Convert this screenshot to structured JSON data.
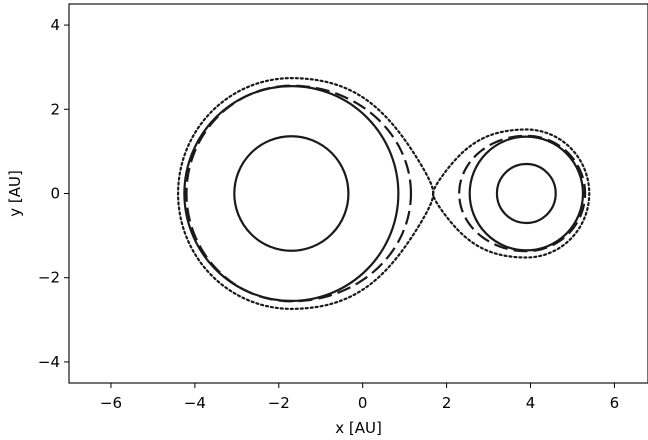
{
  "chart_data": {
    "type": "line",
    "title": "",
    "xlabel": "x [AU]",
    "ylabel": "y [AU]",
    "xlim": [
      -7,
      6.8
    ],
    "ylim": [
      -4.5,
      4.5
    ],
    "xticks": [
      -6,
      -4,
      -2,
      0,
      2,
      4,
      6
    ],
    "yticks": [
      -4,
      -2,
      0,
      2,
      4
    ],
    "xtick_labels": [
      "−6",
      "−4",
      "−2",
      "0",
      "2",
      "4",
      "6"
    ],
    "ytick_labels": [
      "−4",
      "−2",
      "0",
      "2",
      "4"
    ],
    "grid": false,
    "legend": null,
    "color": "#1a1a1a",
    "series": [
      {
        "style": "solid",
        "circles": [
          {
            "cx": -1.7,
            "cy": 0,
            "r": 1.36
          },
          {
            "cx": 3.9,
            "cy": 0,
            "r": 0.7
          },
          {
            "cx": -1.7,
            "cy": 0,
            "r": 2.55
          },
          {
            "cx": 3.9,
            "cy": 0,
            "r": 1.35
          }
        ]
      },
      {
        "style": "dashed",
        "lobes": [
          {
            "x_center": -1.7,
            "x_near": 1.15,
            "x_far": -4.2,
            "y_half_width": 2.56
          },
          {
            "x_center": 3.9,
            "x_near": 2.3,
            "x_far": 5.3,
            "y_half_width": 1.37
          }
        ]
      },
      {
        "style": "dotted",
        "lobes": [
          {
            "x_center": -1.7,
            "x_near": 1.68,
            "x_far": -4.4,
            "y_half_width": 2.74,
            "cusp": true
          },
          {
            "x_center": 3.9,
            "x_near": 1.68,
            "x_far": 5.4,
            "y_half_width": 1.52,
            "cusp": true
          }
        ]
      }
    ]
  }
}
